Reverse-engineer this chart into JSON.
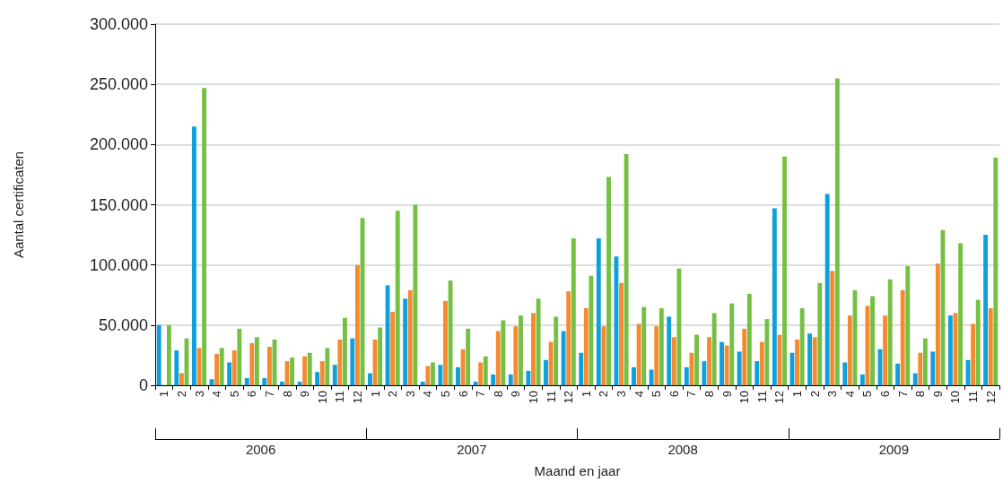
{
  "chart_data": {
    "type": "bar",
    "xlabel": "Maand en jaar",
    "ylabel": "Aantal certificaten",
    "categories": [
      "1",
      "2",
      "3",
      "4",
      "5",
      "6",
      "7",
      "8",
      "9",
      "10",
      "11",
      "12",
      "1",
      "2",
      "3",
      "4",
      "5",
      "6",
      "7",
      "8",
      "9",
      "10",
      "11",
      "12",
      "1",
      "2",
      "3",
      "4",
      "5",
      "6",
      "7",
      "8",
      "9",
      "10",
      "11",
      "12",
      "1",
      "2",
      "3",
      "4",
      "5",
      "6",
      "7",
      "8",
      "9",
      "10",
      "11",
      "12"
    ],
    "series": [
      {
        "color": "#0ea0dc",
        "values": [
          50000,
          29000,
          215000,
          5000,
          19000,
          6000,
          6000,
          3000,
          3000,
          11000,
          17000,
          39000,
          10000,
          83000,
          72000,
          3000,
          17000,
          15000,
          3000,
          9000,
          9000,
          12000,
          21000,
          45000,
          27000,
          122000,
          107000,
          15000,
          13000,
          57000,
          15000,
          20000,
          36000,
          28000,
          20000,
          147000,
          27000,
          43000,
          159000,
          19000,
          9000,
          30000,
          18000,
          10000,
          28000,
          58000,
          21000,
          125000
        ]
      },
      {
        "color": "#f58a2f",
        "values": [
          0,
          10000,
          31000,
          26000,
          29000,
          35000,
          32000,
          20000,
          24000,
          20000,
          38000,
          100000,
          38000,
          61000,
          79000,
          16000,
          70000,
          30000,
          19000,
          45000,
          49000,
          60000,
          36000,
          78000,
          64000,
          49000,
          85000,
          51000,
          49000,
          40000,
          27000,
          40000,
          33000,
          47000,
          36000,
          42000,
          38000,
          40000,
          95000,
          58000,
          66000,
          58000,
          79000,
          27000,
          101000,
          60000,
          51000,
          64000
        ]
      },
      {
        "color": "#74c043",
        "values": [
          50000,
          39000,
          247000,
          31000,
          47000,
          40000,
          38000,
          23000,
          27000,
          31000,
          56000,
          139000,
          48000,
          145000,
          150000,
          19000,
          87000,
          47000,
          24000,
          54000,
          58000,
          72000,
          57000,
          122000,
          91000,
          173000,
          192000,
          65000,
          64000,
          97000,
          42000,
          60000,
          68000,
          76000,
          55000,
          190000,
          64000,
          85000,
          255000,
          79000,
          74000,
          88000,
          99000,
          39000,
          129000,
          118000,
          71000,
          189000
        ]
      }
    ],
    "ylim": [
      0,
      300000
    ],
    "yticks": [
      0,
      {
        "value": 50000,
        "label": "50.000"
      },
      {
        "value": 100000,
        "label": "100.000"
      },
      {
        "value": 150000,
        "label": "150.000"
      },
      {
        "value": 200000,
        "label": "200.000"
      },
      {
        "value": 250000,
        "label": "250.000"
      },
      {
        "value": 300000,
        "label": "300.000"
      }
    ],
    "grid": "y",
    "annotations": [
      "2006",
      "2007",
      "2008",
      "2009"
    ]
  }
}
